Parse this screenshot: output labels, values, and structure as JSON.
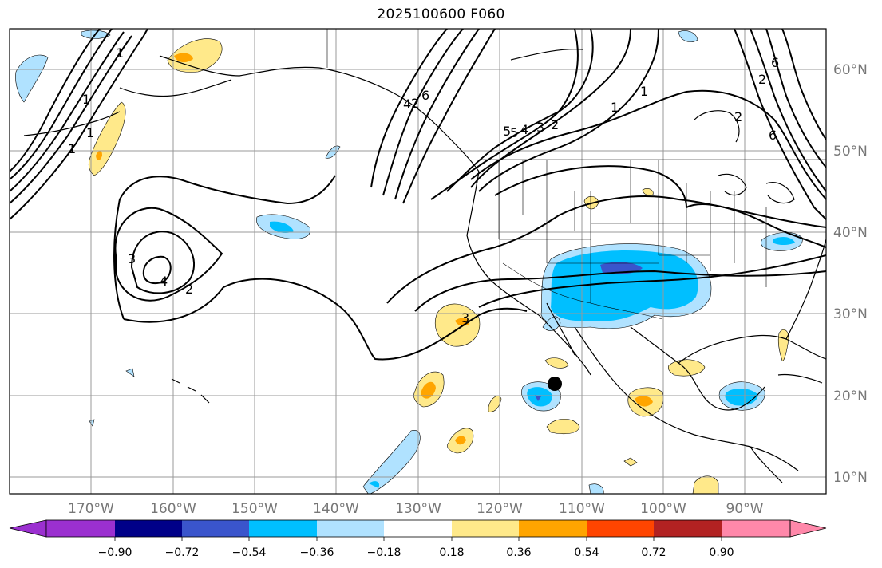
{
  "title": "2025100600 F060",
  "map": {
    "lat_labels": [
      "60°N",
      "50°N",
      "40°N",
      "30°N",
      "20°N",
      "10°N"
    ],
    "lon_labels": [
      "170°W",
      "160°W",
      "150°W",
      "140°W",
      "130°W",
      "120°W",
      "110°W",
      "100°W",
      "90°W"
    ],
    "contour_labels": [
      "1",
      "1",
      "2",
      "3",
      "4",
      "5",
      "6",
      "1",
      "2",
      "3",
      "4",
      "5",
      "6",
      "2",
      "3",
      "4",
      "1",
      "1",
      "2",
      "2",
      "1",
      "6"
    ],
    "marker": {
      "name": "storm-center",
      "lat": 21.5,
      "lon": -113.7
    }
  },
  "colorbar": {
    "ticks": [
      "−0.90",
      "−0.72",
      "−0.54",
      "−0.36",
      "−0.18",
      "0.18",
      "0.36",
      "0.54",
      "0.72",
      "0.90"
    ],
    "colors": [
      "#9b30d0",
      "#000088",
      "#3a55cc",
      "#00bfff",
      "#b0e2ff",
      "#ffffff",
      "#ffe98a",
      "#ffa500",
      "#ff4500",
      "#b22222",
      "#ff88aa"
    ]
  }
}
